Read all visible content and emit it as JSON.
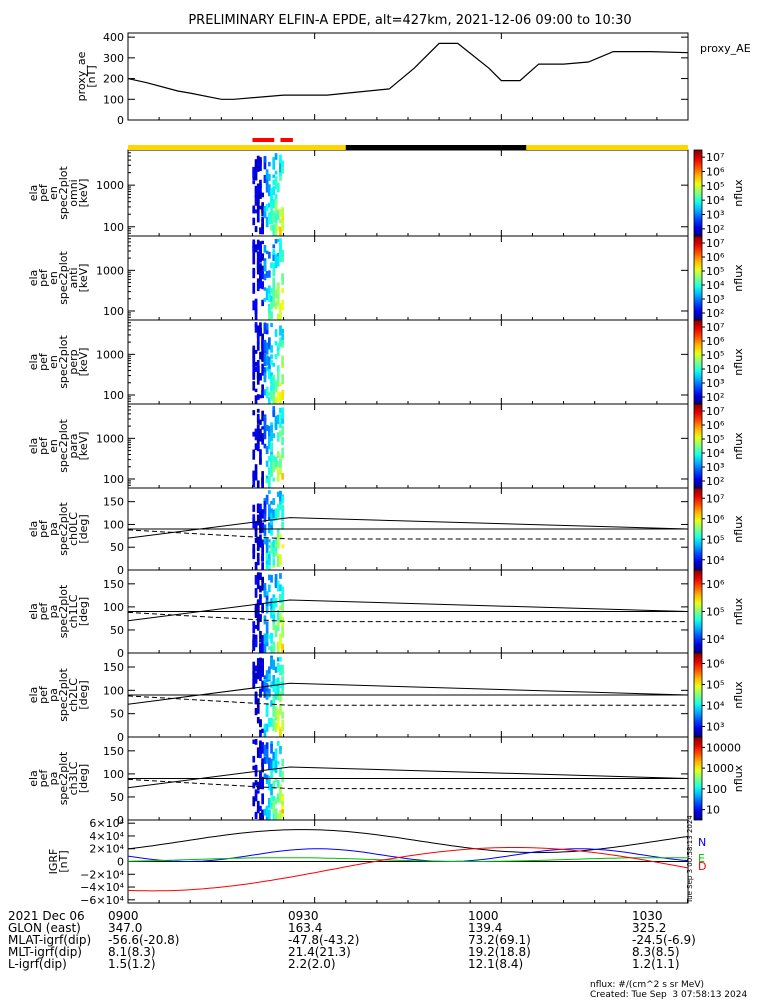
{
  "title": "PRELIMINARY ELFIN-A EPDE, alt=427km, 2021-12-06 09:00 to 10:30",
  "chart_data": {
    "type": "spectrogram",
    "time_range": [
      "2021-12-06 09:00",
      "2021-12-06 10:30"
    ],
    "x_tick_labels": [
      "0900",
      "0930",
      "1000",
      "1030"
    ],
    "x_ticks_min": [
      0,
      30,
      60,
      90
    ],
    "panels": [
      {
        "id": "proxy_ae",
        "ylabel": "proxy_ae [nT]",
        "ylabel_lines": [
          "proxy_ae",
          "[nT]"
        ],
        "legend": "proxy_AE",
        "yticks": [
          0,
          100,
          200,
          300,
          400
        ],
        "ytick_labels": [
          "0",
          "100",
          "200",
          "300",
          "400"
        ],
        "ylim": [
          0,
          420
        ],
        "x_min": [
          0,
          3,
          8,
          10,
          15,
          17,
          25,
          32,
          42,
          46,
          50,
          53,
          58,
          60,
          63,
          66,
          70,
          74,
          78,
          84,
          90
        ],
        "values": [
          200,
          180,
          140,
          130,
          100,
          100,
          120,
          120,
          150,
          250,
          370,
          370,
          250,
          190,
          190,
          270,
          270,
          280,
          330,
          330,
          325
        ]
      },
      {
        "id": "en_omni",
        "ylabel_lines": [
          "ela",
          "pef",
          "en",
          "spec2plot",
          "omni",
          "[keV]"
        ],
        "yscale": "log",
        "ylim": [
          60,
          7000
        ],
        "ytick_labels": [
          "100",
          "1000"
        ],
        "zlabel": "nflux",
        "zlim": [
          100,
          10000000
        ]
      },
      {
        "id": "en_anti",
        "ylabel_lines": [
          "ela",
          "pef",
          "en",
          "spec2plot",
          "anti",
          "[keV]"
        ],
        "yscale": "log",
        "ylim": [
          60,
          7000
        ],
        "ytick_labels": [
          "100",
          "1000"
        ],
        "zlabel": "nflux",
        "zlim": [
          100,
          10000000
        ]
      },
      {
        "id": "en_perp",
        "ylabel_lines": [
          "ela",
          "pef",
          "en",
          "spec2plot",
          "perp",
          "[keV]"
        ],
        "yscale": "log",
        "ylim": [
          60,
          7000
        ],
        "ytick_labels": [
          "100",
          "1000"
        ],
        "zlabel": "nflux",
        "zlim": [
          100,
          10000000
        ]
      },
      {
        "id": "en_para",
        "ylabel_lines": [
          "ela",
          "pef",
          "en",
          "spec2plot",
          "para",
          "[keV]"
        ],
        "yscale": "log",
        "ylim": [
          60,
          7000
        ],
        "ytick_labels": [
          "100",
          "1000"
        ],
        "zlabel": "nflux",
        "zlim": [
          100,
          10000000
        ]
      },
      {
        "id": "pa_ch0",
        "ylabel_lines": [
          "ela",
          "pef",
          "pa",
          "spec2plot",
          "ch0LC",
          "[deg]"
        ],
        "ylim": [
          0,
          180
        ],
        "yticks": [
          0,
          50,
          100,
          150
        ],
        "ytick_labels": [
          "0",
          "50",
          "100",
          "150"
        ],
        "zlabel": "nflux",
        "zlim": [
          1000,
          10000000
        ]
      },
      {
        "id": "pa_ch1",
        "ylabel_lines": [
          "ela",
          "pef",
          "pa",
          "spec2plot",
          "ch1LC",
          "[deg]"
        ],
        "ylim": [
          0,
          180
        ],
        "yticks": [
          0,
          50,
          100,
          150
        ],
        "ytick_labels": [
          "0",
          "50",
          "100",
          "150"
        ],
        "zlabel": "nflux",
        "zlim": [
          1000,
          1000000
        ]
      },
      {
        "id": "pa_ch2",
        "ylabel_lines": [
          "ela",
          "pef",
          "pa",
          "spec2plot",
          "ch2LC",
          "[deg]"
        ],
        "ylim": [
          0,
          180
        ],
        "yticks": [
          0,
          50,
          100,
          150
        ],
        "ytick_labels": [
          "0",
          "50",
          "100",
          "150"
        ],
        "zlabel": "nflux",
        "zlim": [
          100,
          1000000
        ]
      },
      {
        "id": "pa_ch3",
        "ylabel_lines": [
          "ela",
          "pef",
          "pa",
          "spec2plot",
          "ch3LC",
          "[deg]"
        ],
        "ylim": [
          0,
          180
        ],
        "yticks": [
          0,
          50,
          100,
          150
        ],
        "ytick_labels": [
          "0",
          "50",
          "100",
          "150"
        ],
        "zlabel": "nflux",
        "zlim": [
          10,
          10000
        ]
      },
      {
        "id": "igrf",
        "ylabel_lines": [
          "IGRF",
          "[nT]"
        ],
        "ylim": [
          -65000,
          65000
        ],
        "ytick_labels": [
          "−6×10⁴",
          "−4×10⁴",
          "−2×10⁴",
          "0",
          "2×10⁴",
          "4×10⁴",
          "6×10⁴"
        ],
        "series": [
          {
            "name": "N",
            "color": "#0000ff"
          },
          {
            "name": "E",
            "color": "#00c000"
          },
          {
            "name": "D",
            "color": "#ff0000"
          }
        ]
      }
    ],
    "pa_lines": {
      "x_min": [
        0,
        26,
        90
      ],
      "solid": [
        70,
        115,
        90
      ],
      "dashed": [
        88,
        68,
        68
      ]
    },
    "loss_cone_x_min": [
      20,
      25
    ],
    "orbit_bar": {
      "yellow": [
        [
          0,
          35
        ],
        [
          64,
          90
        ]
      ],
      "black": [
        [
          35,
          64
        ]
      ],
      "red": [
        [
          20,
          23.5
        ],
        [
          24.5,
          26.5
        ]
      ],
      "colors": {
        "yellow": "#ffd700",
        "black": "#000000",
        "red": "#ff0000"
      }
    },
    "colorbar_tick_labels": {
      "en": [
        "10²",
        "10³",
        "10⁴",
        "10⁵",
        "10⁶",
        "10⁷"
      ],
      "ch0": [
        "10⁴",
        "10⁵",
        "10⁶",
        "10⁷"
      ],
      "ch1": [
        "10⁴",
        "10⁵",
        "10⁶"
      ],
      "ch2": [
        "10³",
        "10⁴",
        "10⁵",
        "10⁶"
      ],
      "ch3": [
        "10",
        "100",
        "1000",
        "10000"
      ]
    },
    "footer": {
      "rows": [
        [
          "2021 Dec 06",
          "0900",
          "0930",
          "1000",
          "1030"
        ],
        [
          "GLON (east)",
          "347.0",
          "163.4",
          "139.4",
          "325.2"
        ],
        [
          "MLAT-igrf(dip)",
          "-56.6(-20.8)",
          "-47.8(-43.2)",
          "73.2(69.1)",
          "-24.5(-6.9)"
        ],
        [
          "MLT-igrf(dip)",
          "8.1(8.3)",
          "21.4(21.3)",
          "19.2(18.8)",
          "8.3(8.5)"
        ],
        [
          "L-igrf(dip)",
          "1.5(1.2)",
          "2.2(2.0)",
          "12.1(8.4)",
          "1.2(1.1)"
        ]
      ]
    },
    "side_stamp": "Tue Sep  3 00:58:13 2024",
    "units_note": "nflux: #/(cm^2 s sr MeV)",
    "created_note": "Created: Tue Sep  3 07:58:13 2024"
  }
}
